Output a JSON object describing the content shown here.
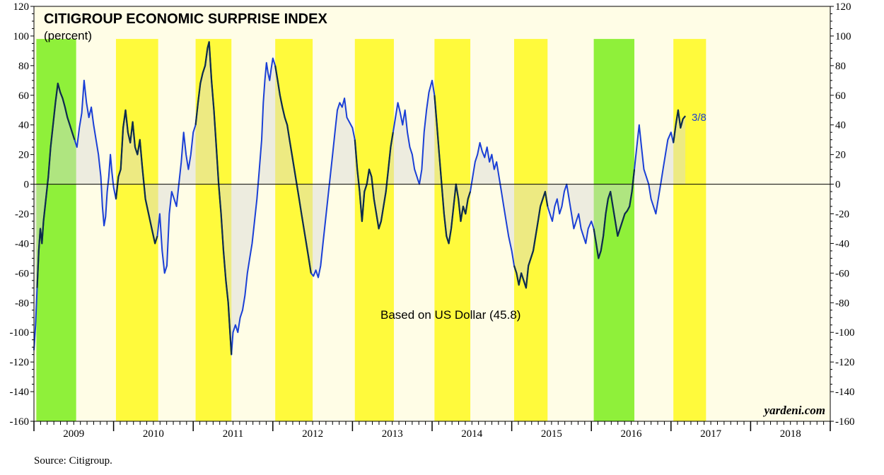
{
  "chart_data": {
    "type": "line",
    "title": "CITIGROUP ECONOMIC SURPRISE INDEX",
    "subtitle": "(percent)",
    "annotation": "Based on US Dollar (45.8)",
    "last_date_label": "3/8",
    "watermark": "yardeni.com",
    "source": "Source: Citigroup.",
    "xlim": [
      2009.0,
      2019.0
    ],
    "ylim": [
      -160,
      120
    ],
    "y_ticks": [
      -160,
      -140,
      -120,
      -100,
      -80,
      -60,
      -40,
      -20,
      0,
      20,
      40,
      60,
      80,
      100,
      120
    ],
    "year_labels": [
      "2009",
      "2010",
      "2011",
      "2012",
      "2013",
      "2014",
      "2015",
      "2016",
      "2017",
      "2018"
    ],
    "grid": false,
    "colors": {
      "plot_bg": "#fffde6",
      "yellow_band": "#fffa3c",
      "green_band": "#8ff03a",
      "line": "#1a3fd6",
      "dark_line": "#0e2d4a",
      "fill": "#d8d8d8"
    },
    "bands": [
      {
        "x0": 2009.03,
        "x1": 2009.53,
        "color": "green"
      },
      {
        "x0": 2010.03,
        "x1": 2010.56,
        "color": "yellow"
      },
      {
        "x0": 2011.03,
        "x1": 2011.48,
        "color": "yellow"
      },
      {
        "x0": 2012.03,
        "x1": 2012.5,
        "color": "yellow"
      },
      {
        "x0": 2013.03,
        "x1": 2013.52,
        "color": "yellow"
      },
      {
        "x0": 2014.03,
        "x1": 2014.48,
        "color": "yellow"
      },
      {
        "x0": 2015.03,
        "x1": 2015.45,
        "color": "yellow"
      },
      {
        "x0": 2016.03,
        "x1": 2016.54,
        "color": "green"
      },
      {
        "x0": 2017.03,
        "x1": 2017.44,
        "color": "yellow"
      }
    ],
    "series": [
      {
        "points": [
          [
            2009.0,
            -112
          ],
          [
            2009.02,
            -95
          ],
          [
            2009.04,
            -70
          ],
          [
            2009.06,
            -45
          ],
          [
            2009.08,
            -30
          ],
          [
            2009.1,
            -40
          ],
          [
            2009.12,
            -25
          ],
          [
            2009.15,
            -10
          ],
          [
            2009.18,
            5
          ],
          [
            2009.21,
            25
          ],
          [
            2009.24,
            40
          ],
          [
            2009.27,
            55
          ],
          [
            2009.3,
            68
          ],
          [
            2009.33,
            62
          ],
          [
            2009.36,
            58
          ],
          [
            2009.39,
            52
          ],
          [
            2009.42,
            45
          ],
          [
            2009.45,
            40
          ],
          [
            2009.48,
            35
          ],
          [
            2009.51,
            30
          ],
          [
            2009.54,
            25
          ],
          [
            2009.57,
            38
          ],
          [
            2009.6,
            48
          ],
          [
            2009.63,
            70
          ],
          [
            2009.66,
            55
          ],
          [
            2009.69,
            45
          ],
          [
            2009.72,
            52
          ],
          [
            2009.75,
            40
          ],
          [
            2009.78,
            30
          ],
          [
            2009.81,
            20
          ],
          [
            2009.84,
            5
          ],
          [
            2009.86,
            -15
          ],
          [
            2009.88,
            -28
          ],
          [
            2009.9,
            -22
          ],
          [
            2009.92,
            -5
          ],
          [
            2009.94,
            5
          ],
          [
            2009.96,
            20
          ],
          [
            2009.98,
            8
          ],
          [
            2010.0,
            -2
          ],
          [
            2010.03,
            -10
          ],
          [
            2010.06,
            5
          ],
          [
            2010.09,
            10
          ],
          [
            2010.12,
            38
          ],
          [
            2010.15,
            50
          ],
          [
            2010.18,
            35
          ],
          [
            2010.21,
            28
          ],
          [
            2010.24,
            42
          ],
          [
            2010.27,
            25
          ],
          [
            2010.3,
            20
          ],
          [
            2010.33,
            30
          ],
          [
            2010.36,
            12
          ],
          [
            2010.4,
            -10
          ],
          [
            2010.44,
            -20
          ],
          [
            2010.48,
            -30
          ],
          [
            2010.52,
            -40
          ],
          [
            2010.55,
            -35
          ],
          [
            2010.58,
            -20
          ],
          [
            2010.61,
            -45
          ],
          [
            2010.64,
            -60
          ],
          [
            2010.67,
            -55
          ],
          [
            2010.7,
            -20
          ],
          [
            2010.73,
            -5
          ],
          [
            2010.76,
            -10
          ],
          [
            2010.79,
            -15
          ],
          [
            2010.82,
            0
          ],
          [
            2010.85,
            15
          ],
          [
            2010.88,
            35
          ],
          [
            2010.91,
            20
          ],
          [
            2010.94,
            10
          ],
          [
            2010.97,
            20
          ],
          [
            2011.0,
            35
          ],
          [
            2011.03,
            40
          ],
          [
            2011.06,
            55
          ],
          [
            2011.09,
            68
          ],
          [
            2011.12,
            75
          ],
          [
            2011.15,
            80
          ],
          [
            2011.18,
            92
          ],
          [
            2011.2,
            96
          ],
          [
            2011.23,
            70
          ],
          [
            2011.26,
            50
          ],
          [
            2011.29,
            25
          ],
          [
            2011.32,
            0
          ],
          [
            2011.35,
            -20
          ],
          [
            2011.38,
            -45
          ],
          [
            2011.41,
            -65
          ],
          [
            2011.44,
            -80
          ],
          [
            2011.46,
            -98
          ],
          [
            2011.48,
            -115
          ],
          [
            2011.5,
            -100
          ],
          [
            2011.53,
            -95
          ],
          [
            2011.56,
            -100
          ],
          [
            2011.59,
            -90
          ],
          [
            2011.62,
            -85
          ],
          [
            2011.65,
            -75
          ],
          [
            2011.68,
            -60
          ],
          [
            2011.71,
            -50
          ],
          [
            2011.74,
            -40
          ],
          [
            2011.77,
            -25
          ],
          [
            2011.8,
            -10
          ],
          [
            2011.83,
            10
          ],
          [
            2011.86,
            30
          ],
          [
            2011.88,
            55
          ],
          [
            2011.9,
            70
          ],
          [
            2011.92,
            82
          ],
          [
            2011.94,
            75
          ],
          [
            2011.96,
            70
          ],
          [
            2011.98,
            78
          ],
          [
            2012.0,
            85
          ],
          [
            2012.03,
            80
          ],
          [
            2012.06,
            70
          ],
          [
            2012.09,
            60
          ],
          [
            2012.12,
            52
          ],
          [
            2012.15,
            45
          ],
          [
            2012.18,
            40
          ],
          [
            2012.21,
            30
          ],
          [
            2012.24,
            20
          ],
          [
            2012.27,
            10
          ],
          [
            2012.3,
            0
          ],
          [
            2012.33,
            -10
          ],
          [
            2012.36,
            -20
          ],
          [
            2012.39,
            -30
          ],
          [
            2012.42,
            -40
          ],
          [
            2012.45,
            -50
          ],
          [
            2012.48,
            -60
          ],
          [
            2012.51,
            -62
          ],
          [
            2012.54,
            -58
          ],
          [
            2012.57,
            -63
          ],
          [
            2012.6,
            -55
          ],
          [
            2012.63,
            -40
          ],
          [
            2012.66,
            -25
          ],
          [
            2012.69,
            -10
          ],
          [
            2012.72,
            5
          ],
          [
            2012.75,
            20
          ],
          [
            2012.78,
            35
          ],
          [
            2012.81,
            50
          ],
          [
            2012.84,
            55
          ],
          [
            2012.87,
            52
          ],
          [
            2012.9,
            58
          ],
          [
            2012.93,
            45
          ],
          [
            2012.96,
            42
          ],
          [
            2013.0,
            38
          ],
          [
            2013.03,
            30
          ],
          [
            2013.06,
            10
          ],
          [
            2013.09,
            -5
          ],
          [
            2013.12,
            -25
          ],
          [
            2013.15,
            -5
          ],
          [
            2013.18,
            0
          ],
          [
            2013.21,
            10
          ],
          [
            2013.24,
            5
          ],
          [
            2013.27,
            -10
          ],
          [
            2013.3,
            -20
          ],
          [
            2013.33,
            -30
          ],
          [
            2013.36,
            -25
          ],
          [
            2013.39,
            -15
          ],
          [
            2013.42,
            -5
          ],
          [
            2013.45,
            10
          ],
          [
            2013.48,
            25
          ],
          [
            2013.51,
            35
          ],
          [
            2013.54,
            45
          ],
          [
            2013.57,
            55
          ],
          [
            2013.6,
            48
          ],
          [
            2013.63,
            40
          ],
          [
            2013.66,
            50
          ],
          [
            2013.69,
            35
          ],
          [
            2013.72,
            25
          ],
          [
            2013.75,
            20
          ],
          [
            2013.78,
            10
          ],
          [
            2013.81,
            5
          ],
          [
            2013.84,
            0
          ],
          [
            2013.87,
            10
          ],
          [
            2013.9,
            35
          ],
          [
            2013.93,
            50
          ],
          [
            2013.96,
            62
          ],
          [
            2014.0,
            70
          ],
          [
            2014.03,
            60
          ],
          [
            2014.06,
            40
          ],
          [
            2014.09,
            20
          ],
          [
            2014.12,
            0
          ],
          [
            2014.15,
            -20
          ],
          [
            2014.18,
            -35
          ],
          [
            2014.21,
            -40
          ],
          [
            2014.24,
            -30
          ],
          [
            2014.27,
            -15
          ],
          [
            2014.3,
            0
          ],
          [
            2014.33,
            -10
          ],
          [
            2014.36,
            -25
          ],
          [
            2014.39,
            -15
          ],
          [
            2014.42,
            -20
          ],
          [
            2014.45,
            -10
          ],
          [
            2014.48,
            -5
          ],
          [
            2014.51,
            5
          ],
          [
            2014.54,
            15
          ],
          [
            2014.57,
            20
          ],
          [
            2014.6,
            28
          ],
          [
            2014.63,
            22
          ],
          [
            2014.66,
            18
          ],
          [
            2014.69,
            25
          ],
          [
            2014.72,
            15
          ],
          [
            2014.75,
            20
          ],
          [
            2014.78,
            10
          ],
          [
            2014.81,
            15
          ],
          [
            2014.84,
            5
          ],
          [
            2014.87,
            -5
          ],
          [
            2014.9,
            -15
          ],
          [
            2014.93,
            -25
          ],
          [
            2014.96,
            -35
          ],
          [
            2015.0,
            -45
          ],
          [
            2015.03,
            -55
          ],
          [
            2015.06,
            -60
          ],
          [
            2015.09,
            -68
          ],
          [
            2015.12,
            -60
          ],
          [
            2015.15,
            -65
          ],
          [
            2015.18,
            -70
          ],
          [
            2015.21,
            -55
          ],
          [
            2015.24,
            -50
          ],
          [
            2015.27,
            -45
          ],
          [
            2015.3,
            -35
          ],
          [
            2015.33,
            -25
          ],
          [
            2015.36,
            -15
          ],
          [
            2015.39,
            -10
          ],
          [
            2015.42,
            -5
          ],
          [
            2015.45,
            -15
          ],
          [
            2015.48,
            -20
          ],
          [
            2015.51,
            -25
          ],
          [
            2015.54,
            -15
          ],
          [
            2015.57,
            -10
          ],
          [
            2015.6,
            -20
          ],
          [
            2015.63,
            -15
          ],
          [
            2015.66,
            -5
          ],
          [
            2015.69,
            0
          ],
          [
            2015.72,
            -10
          ],
          [
            2015.75,
            -20
          ],
          [
            2015.78,
            -30
          ],
          [
            2015.81,
            -25
          ],
          [
            2015.84,
            -20
          ],
          [
            2015.87,
            -30
          ],
          [
            2015.9,
            -35
          ],
          [
            2015.93,
            -40
          ],
          [
            2015.96,
            -30
          ],
          [
            2016.0,
            -25
          ],
          [
            2016.03,
            -30
          ],
          [
            2016.06,
            -40
          ],
          [
            2016.09,
            -50
          ],
          [
            2016.12,
            -45
          ],
          [
            2016.15,
            -35
          ],
          [
            2016.18,
            -20
          ],
          [
            2016.21,
            -10
          ],
          [
            2016.24,
            -5
          ],
          [
            2016.27,
            -15
          ],
          [
            2016.3,
            -25
          ],
          [
            2016.33,
            -35
          ],
          [
            2016.36,
            -30
          ],
          [
            2016.39,
            -25
          ],
          [
            2016.42,
            -20
          ],
          [
            2016.45,
            -18
          ],
          [
            2016.48,
            -15
          ],
          [
            2016.51,
            -5
          ],
          [
            2016.54,
            10
          ],
          [
            2016.57,
            25
          ],
          [
            2016.6,
            40
          ],
          [
            2016.63,
            25
          ],
          [
            2016.66,
            10
          ],
          [
            2016.69,
            5
          ],
          [
            2016.72,
            0
          ],
          [
            2016.75,
            -10
          ],
          [
            2016.78,
            -15
          ],
          [
            2016.81,
            -20
          ],
          [
            2016.84,
            -10
          ],
          [
            2016.87,
            0
          ],
          [
            2016.9,
            10
          ],
          [
            2016.93,
            20
          ],
          [
            2016.96,
            30
          ],
          [
            2017.0,
            35
          ],
          [
            2017.03,
            28
          ],
          [
            2017.06,
            40
          ],
          [
            2017.09,
            50
          ],
          [
            2017.12,
            38
          ],
          [
            2017.15,
            44
          ],
          [
            2017.18,
            46
          ]
        ]
      }
    ]
  }
}
